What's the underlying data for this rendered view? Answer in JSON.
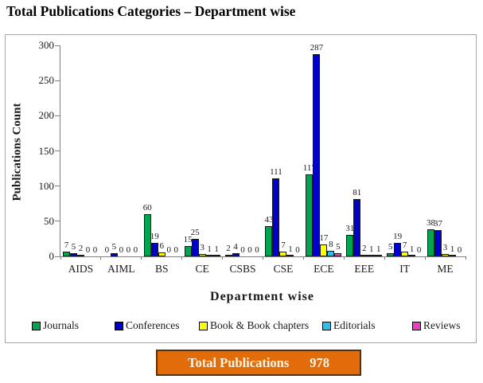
{
  "title": "Total Publications Categories – Department wise",
  "chart_data": {
    "type": "bar",
    "title": "Total Publications Categories – Department wise",
    "xlabel": "Department wise",
    "ylabel": "Publications Count",
    "ylim": [
      0,
      300
    ],
    "yticks": [
      0,
      50,
      100,
      150,
      200,
      250,
      300
    ],
    "grid": false,
    "data_labels": true,
    "legend_position": "bottom",
    "categories": [
      "AIDS",
      "AIML",
      "BS",
      "CE",
      "CSBS",
      "CSE",
      "ECE",
      "EEE",
      "IT",
      "ME"
    ],
    "series": [
      {
        "name": "Journals",
        "color": "#00a64f",
        "values": [
          7,
          0,
          60,
          15,
          2,
          43,
          117,
          31,
          5,
          38
        ]
      },
      {
        "name": "Conferences",
        "color": "#0000cc",
        "values": [
          5,
          5,
          19,
          25,
          4,
          111,
          287,
          81,
          19,
          37
        ]
      },
      {
        "name": "Book & Book chapters",
        "color": "#ffff00",
        "values": [
          2,
          0,
          6,
          3,
          0,
          7,
          17,
          2,
          7,
          3
        ]
      },
      {
        "name": "Editorials",
        "color": "#33bee8",
        "values": [
          0,
          0,
          0,
          1,
          0,
          1,
          8,
          1,
          1,
          1
        ]
      },
      {
        "name": "Reviews",
        "color": "#ee3fbf",
        "values": [
          0,
          0,
          0,
          1,
          0,
          0,
          5,
          1,
          0,
          0
        ]
      }
    ]
  },
  "banner": {
    "label": "Total Publications",
    "value": "978",
    "bg": "#e36c0a"
  },
  "colors": {
    "axis": "#808080",
    "frame_border": "#a6a6a6",
    "banner_border": "#5c2e00",
    "banner_bg": "#e36c0a",
    "banner_text": "#fdf4e3"
  }
}
